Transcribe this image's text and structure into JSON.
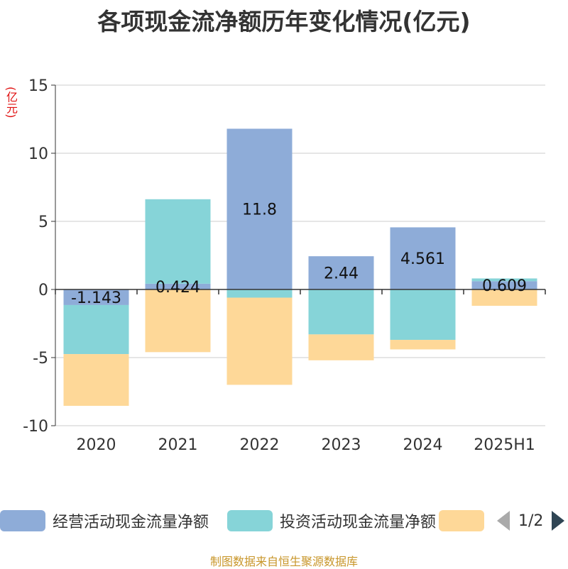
{
  "title": "各项现金流净额历年变化情况(亿元)",
  "unit_label": "(亿元)",
  "source": "制图数据来自恒生聚源数据库",
  "pager": {
    "text": "1/2"
  },
  "chart_data": {
    "type": "bar",
    "stacked": true,
    "categories": [
      "2020",
      "2021",
      "2022",
      "2023",
      "2024",
      "2025H1"
    ],
    "ylim": [
      -10,
      15
    ],
    "yticks": [
      15,
      10,
      5,
      0,
      -5,
      -10
    ],
    "grid": true,
    "legend_position": "bottom",
    "series": [
      {
        "name": "经营活动现金流量净额",
        "color": "#8eacd8",
        "values": [
          -1.143,
          0.424,
          11.8,
          2.44,
          4.561,
          0.609
        ]
      },
      {
        "name": "投资活动现金流量净额",
        "color": "#86d4d8",
        "values": [
          -3.6,
          6.2,
          -0.6,
          -3.3,
          -3.7,
          0.2
        ]
      },
      {
        "name": "",
        "color": "#fed898",
        "values": [
          -3.8,
          -4.6,
          -6.4,
          -1.9,
          -0.7,
          -1.2
        ]
      }
    ],
    "data_labels": [
      "-1.143",
      "0.424",
      "11.8",
      "2.44",
      "4.561",
      "0.609"
    ]
  }
}
